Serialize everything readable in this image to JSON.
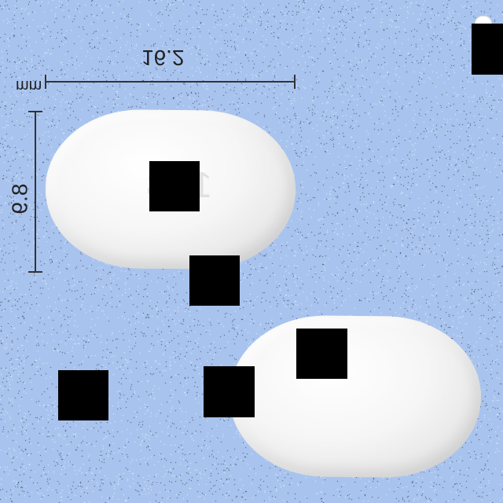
{
  "scene": {
    "background_color": "#a8c4ee",
    "pill_color": "#f4f4f4",
    "occluder_color": "#000000"
  },
  "measurements": {
    "width_value": "16.2",
    "height_value": "8.9",
    "unit": "mm"
  },
  "imprint": {
    "text": "1 3"
  },
  "logo": {
    "line1": "",
    "line2": ""
  }
}
